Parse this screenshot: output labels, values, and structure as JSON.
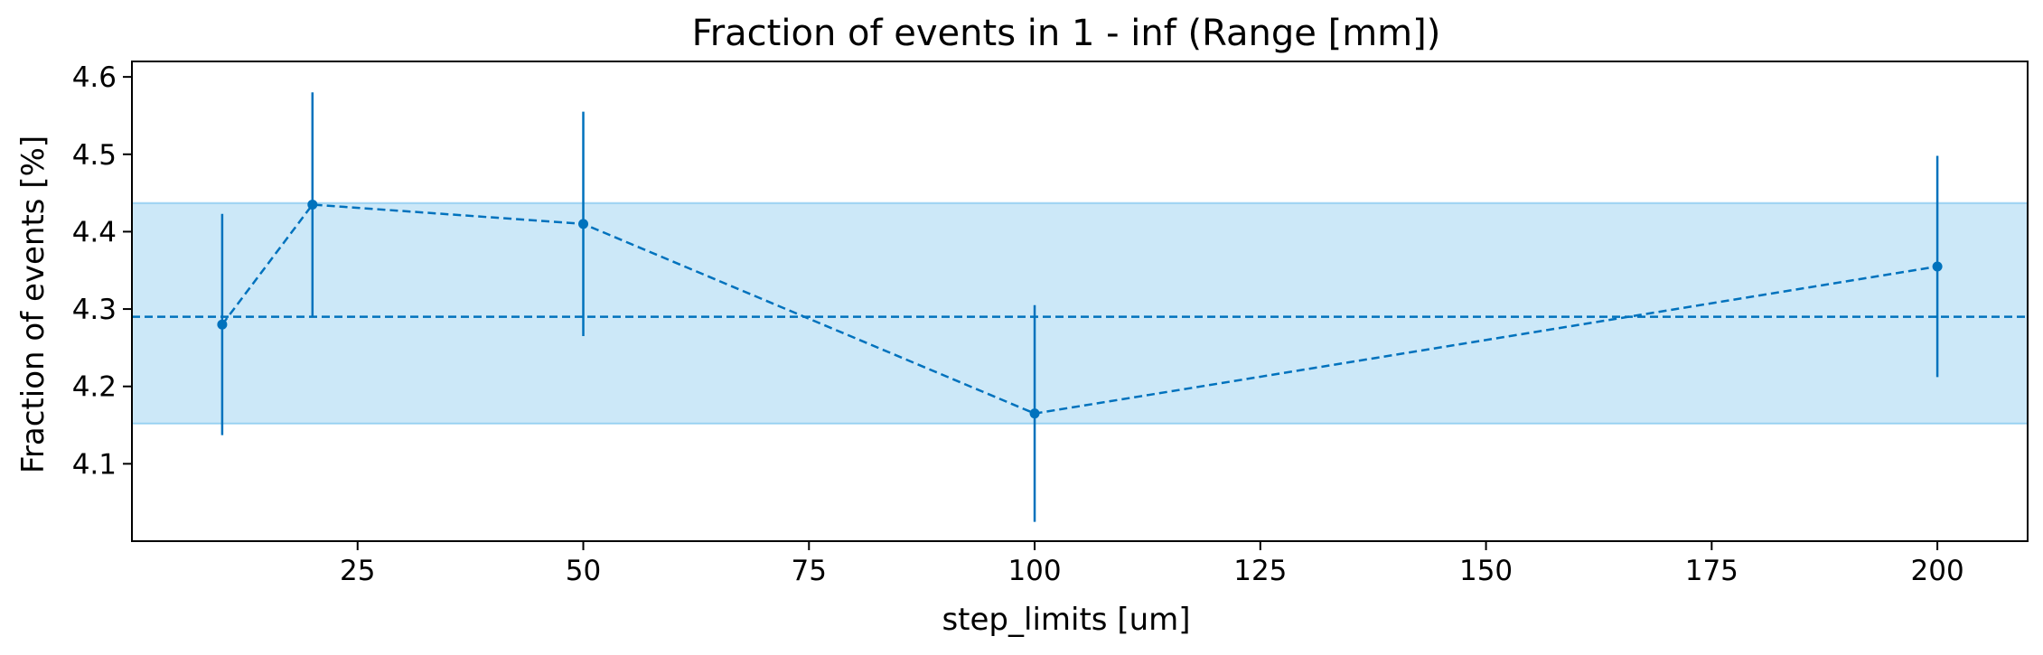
{
  "chart_data": {
    "type": "line",
    "title": "Fraction of events in 1 - inf (Range [mm])",
    "xlabel": "step_limits [um]",
    "ylabel": "Fraction of events [%]",
    "xlim": [
      0,
      210
    ],
    "ylim": [
      4.0,
      4.62
    ],
    "xticks": [
      25,
      50,
      75,
      100,
      125,
      150,
      175,
      200
    ],
    "yticks": [
      4.1,
      4.2,
      4.3,
      4.4,
      4.5,
      4.6
    ],
    "grid": false,
    "series": [
      {
        "x": [
          10,
          20,
          50,
          100,
          200
        ],
        "y": [
          4.28,
          4.435,
          4.41,
          4.165,
          4.355
        ],
        "yerr": [
          0.143,
          0.145,
          0.145,
          0.14,
          0.143
        ],
        "color": "#0072bd",
        "linestyle": "dashed",
        "marker": "circle"
      }
    ],
    "reference_line": {
      "y": 4.29,
      "color": "#0072bd",
      "linestyle": "dashed"
    },
    "band": {
      "y_low": 4.152,
      "y_high": 4.437,
      "color": "#56b4e9"
    }
  }
}
